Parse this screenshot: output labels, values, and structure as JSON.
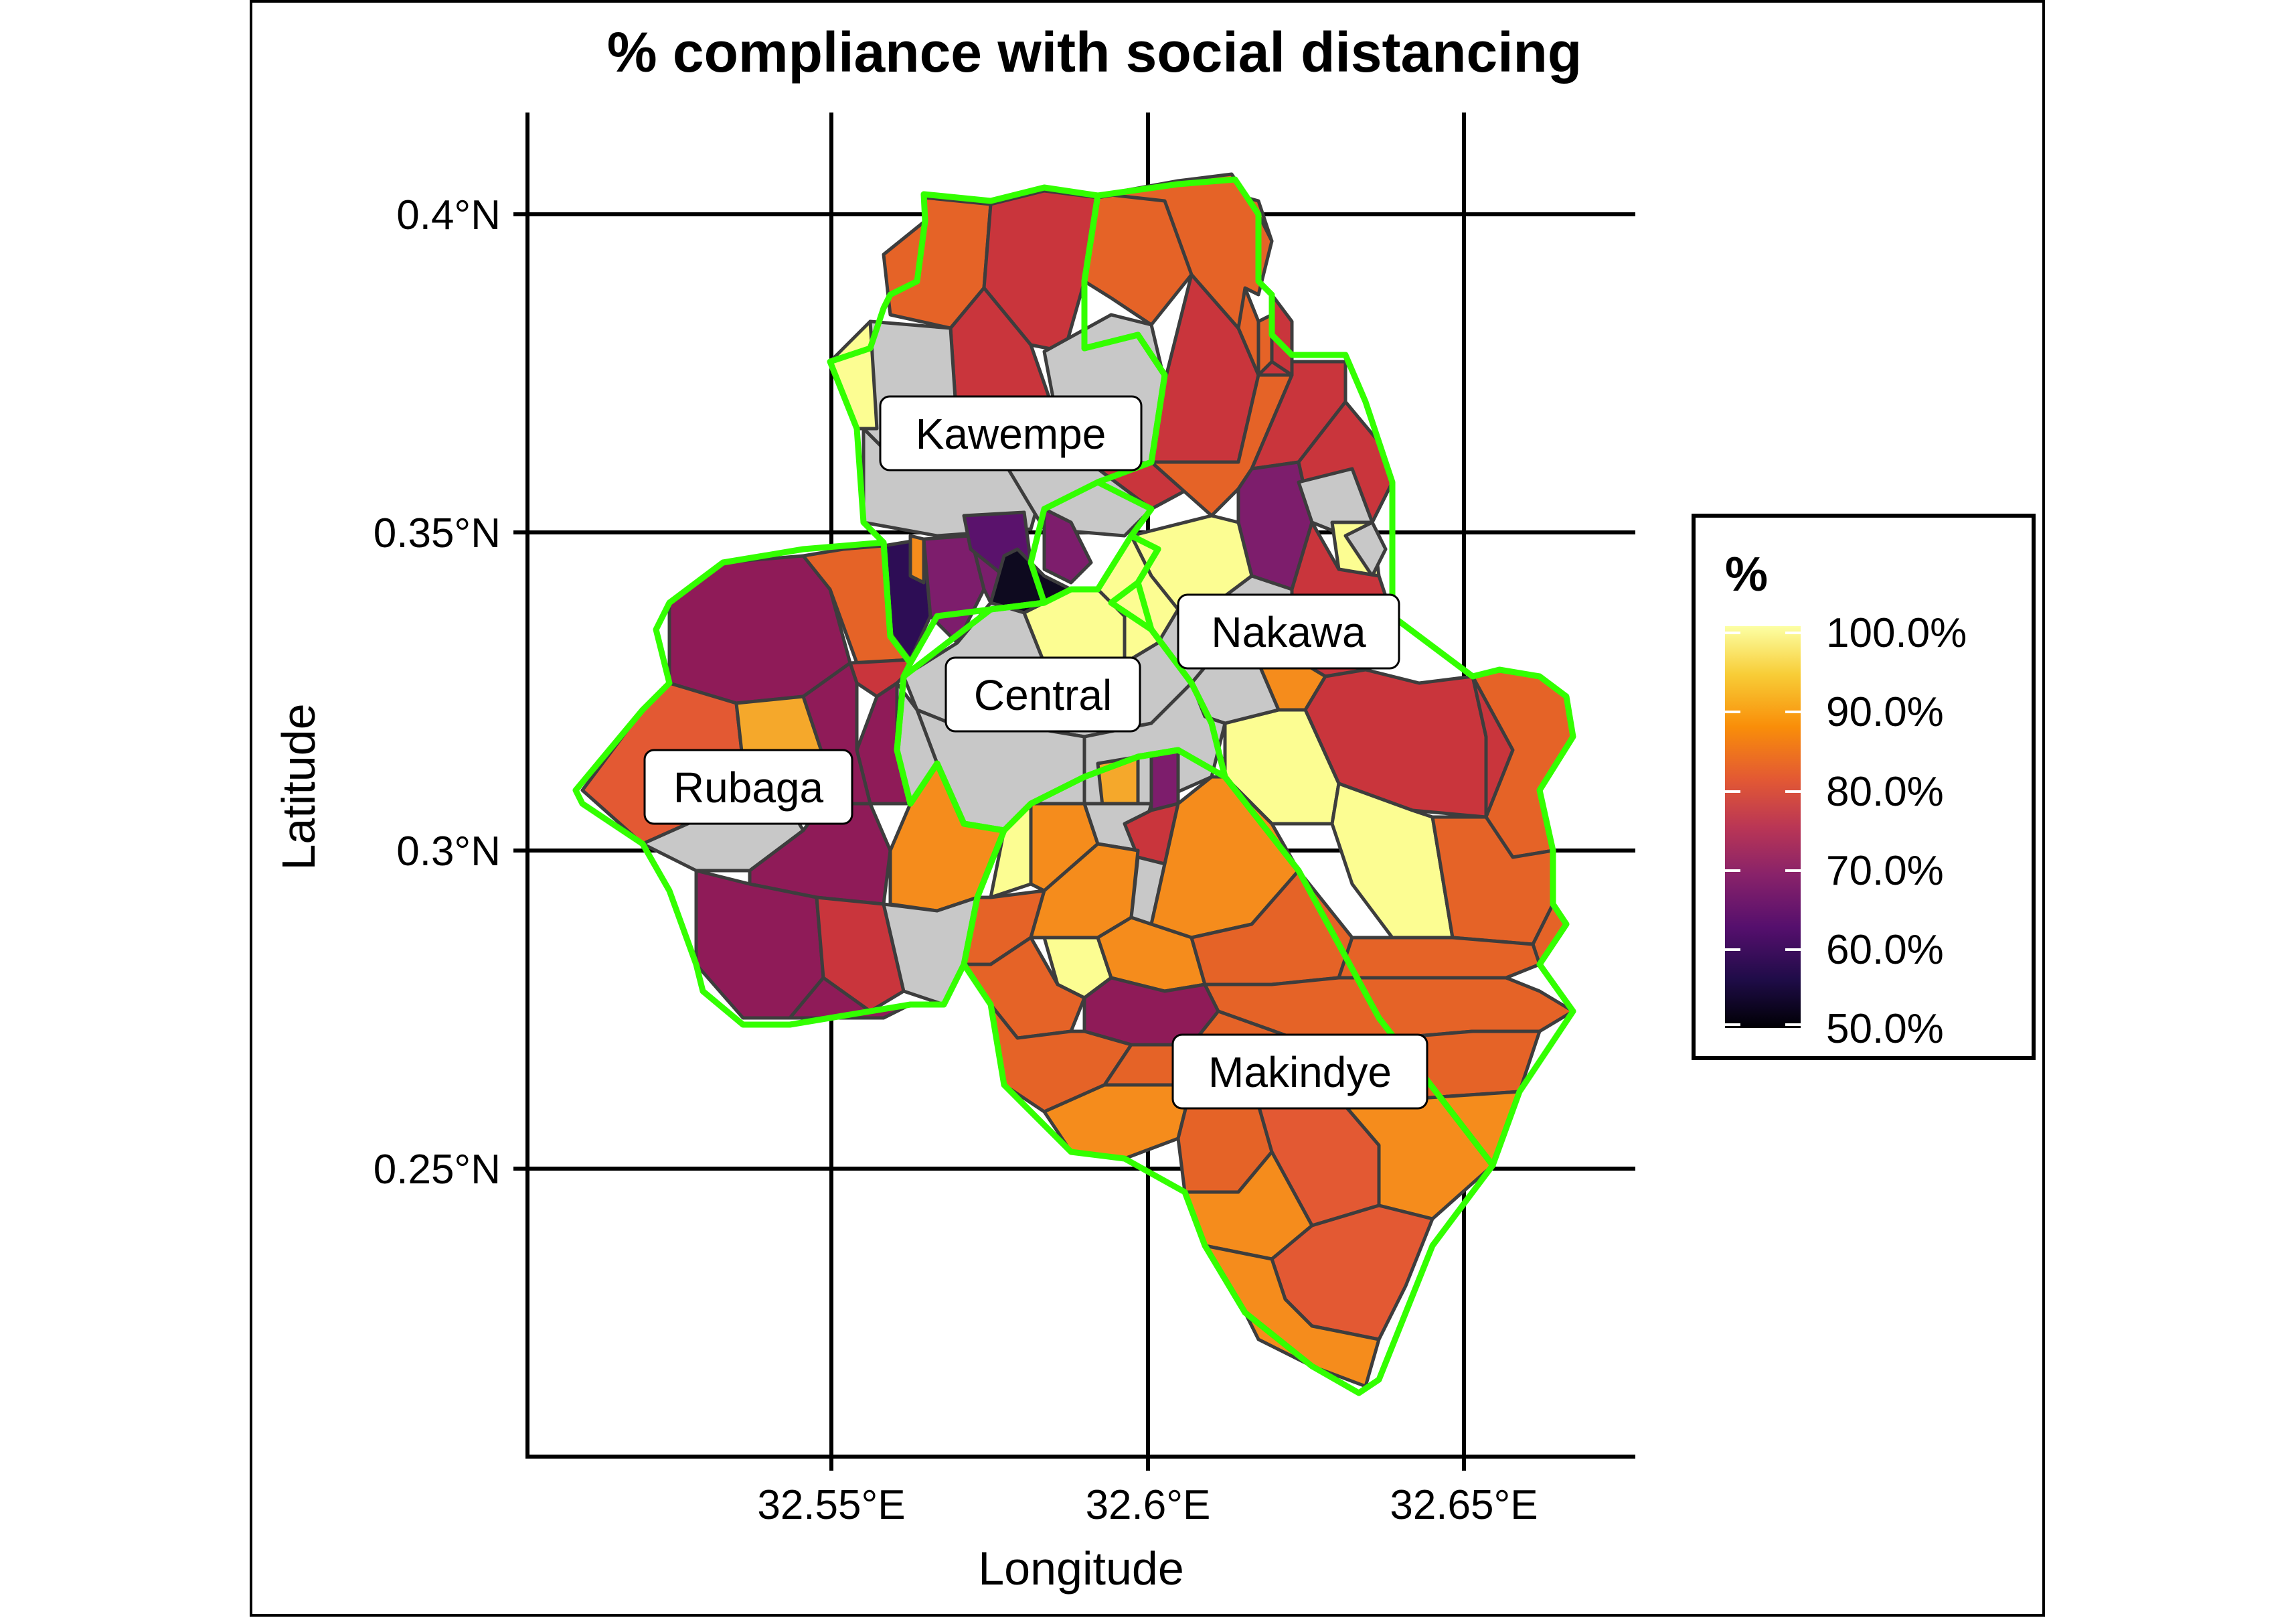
{
  "title": "% compliance with social distancing",
  "xlabel": "Longitude",
  "ylabel": "Latitude",
  "x_ticks": [
    "32.55°E",
    "32.6°E",
    "32.65°E"
  ],
  "y_ticks": [
    "0.4°N",
    "0.35°N",
    "0.3°N",
    "0.25°N"
  ],
  "division_labels": [
    "Kawempe",
    "Nakawa",
    "Central",
    "Rubaga",
    "Makindye"
  ],
  "legend": {
    "title": "%",
    "labels": [
      "100.0%",
      "90.0%",
      "80.0%",
      "70.0%",
      "60.0%",
      "50.0%"
    ]
  },
  "colors": {
    "boundary": "#33ff00",
    "na_fill": "#c8c8c8",
    "parish_border": "#3d3d3d"
  }
}
